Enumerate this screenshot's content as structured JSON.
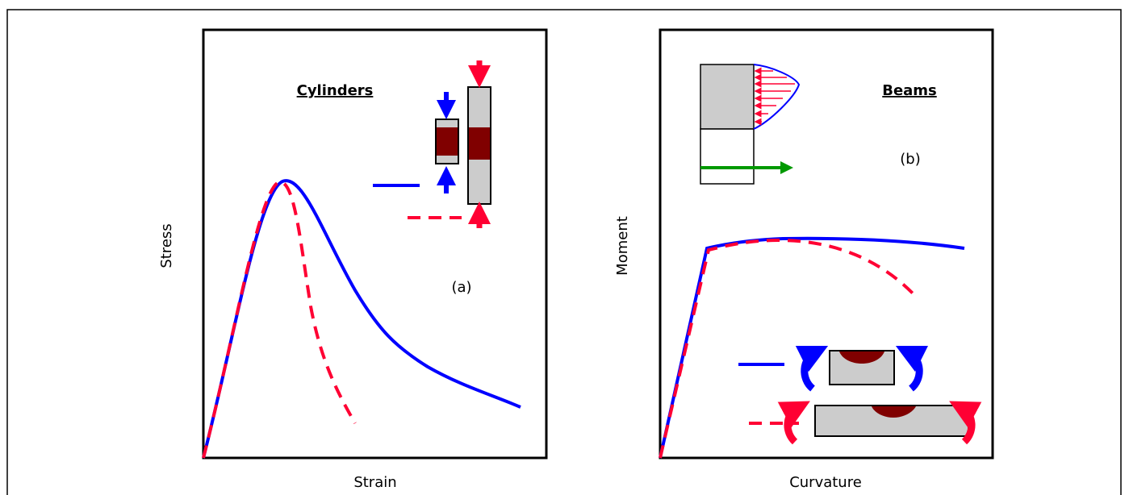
{
  "panels": [
    {
      "title": "Cylinders",
      "label": "(a)",
      "y_axis": "Stress",
      "x_axis": "Strain"
    },
    {
      "title": "Beams",
      "label": "(b)",
      "y_axis": "Moment",
      "x_axis": "Curvature"
    }
  ]
}
